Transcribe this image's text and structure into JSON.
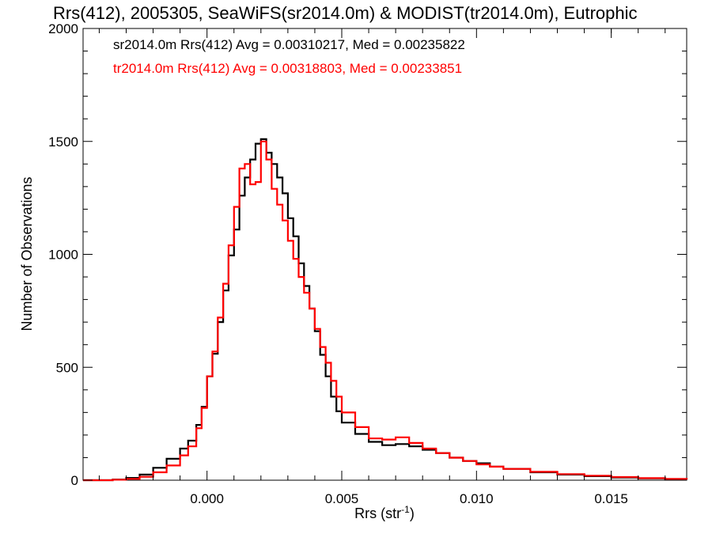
{
  "chart_data": {
    "type": "line",
    "title": "Rrs(412), 2005305, SeaWiFS(sr2014.0m) & MODIST(tr2014.0m), Eutrophic",
    "xlabel": "Rrs (str",
    "xlabel_sup": "-1",
    "xlabel_end": ")",
    "ylabel": "Number of Observations",
    "xlim": [
      -0.0046,
      0.0178
    ],
    "ylim": [
      0,
      2000
    ],
    "xticks": [
      0.0,
      0.005,
      0.01,
      0.015
    ],
    "xtick_labels": [
      "0.000",
      "0.005",
      "0.010",
      "0.015"
    ],
    "yticks": [
      0,
      500,
      1000,
      1500,
      2000
    ],
    "ytick_labels": [
      "0",
      "500",
      "1000",
      "1500",
      "2000"
    ],
    "series": [
      {
        "name": "sr2014.0m",
        "color": "#000000",
        "label": "sr2014.0m Rrs(412) Avg = 0.00310217, Med = 0.00235822",
        "x": [
          -0.0046,
          -0.0035,
          -0.003,
          -0.0025,
          -0.002,
          -0.0015,
          -0.001,
          -0.0007,
          -0.0004,
          -0.0002,
          0.0,
          0.0002,
          0.0004,
          0.0006,
          0.0008,
          0.001,
          0.0012,
          0.0014,
          0.0016,
          0.0018,
          0.002,
          0.0022,
          0.0024,
          0.0026,
          0.0028,
          0.003,
          0.0032,
          0.0034,
          0.0036,
          0.0038,
          0.004,
          0.0042,
          0.0044,
          0.0046,
          0.0048,
          0.005,
          0.0055,
          0.006,
          0.0065,
          0.007,
          0.0075,
          0.008,
          0.0085,
          0.009,
          0.0095,
          0.01,
          0.0105,
          0.011,
          0.012,
          0.013,
          0.014,
          0.015,
          0.016,
          0.017,
          0.0178
        ],
        "y": [
          0,
          3,
          10,
          25,
          55,
          95,
          140,
          175,
          245,
          325,
          460,
          560,
          700,
          840,
          995,
          1110,
          1260,
          1340,
          1420,
          1490,
          1510,
          1450,
          1400,
          1340,
          1270,
          1160,
          1080,
          960,
          860,
          760,
          660,
          555,
          460,
          370,
          305,
          255,
          205,
          170,
          155,
          160,
          150,
          135,
          120,
          100,
          85,
          75,
          60,
          50,
          35,
          25,
          18,
          12,
          8,
          5,
          3
        ]
      },
      {
        "name": "tr2014.0m",
        "color": "#ff0000",
        "label": "tr2014.0m Rrs(412) Avg = 0.00318803, Med = 0.00233851",
        "x": [
          -0.0046,
          -0.0035,
          -0.003,
          -0.0025,
          -0.002,
          -0.0015,
          -0.001,
          -0.0007,
          -0.0004,
          -0.0002,
          0.0,
          0.0002,
          0.0004,
          0.0006,
          0.0008,
          0.001,
          0.0012,
          0.0014,
          0.0016,
          0.0018,
          0.002,
          0.0022,
          0.0024,
          0.0026,
          0.0028,
          0.003,
          0.0032,
          0.0034,
          0.0036,
          0.0038,
          0.004,
          0.0042,
          0.0044,
          0.0046,
          0.0048,
          0.005,
          0.0055,
          0.006,
          0.0065,
          0.007,
          0.0075,
          0.008,
          0.0085,
          0.009,
          0.0095,
          0.01,
          0.0105,
          0.011,
          0.012,
          0.013,
          0.014,
          0.015,
          0.016,
          0.017,
          0.0178
        ],
        "y": [
          0,
          2,
          6,
          15,
          35,
          65,
          110,
          150,
          230,
          320,
          460,
          570,
          720,
          870,
          1040,
          1210,
          1380,
          1400,
          1310,
          1320,
          1500,
          1420,
          1290,
          1220,
          1150,
          1060,
          980,
          900,
          830,
          760,
          670,
          590,
          520,
          440,
          370,
          300,
          235,
          185,
          180,
          190,
          165,
          140,
          120,
          100,
          85,
          70,
          60,
          50,
          37,
          27,
          20,
          14,
          9,
          6,
          3
        ]
      }
    ]
  }
}
